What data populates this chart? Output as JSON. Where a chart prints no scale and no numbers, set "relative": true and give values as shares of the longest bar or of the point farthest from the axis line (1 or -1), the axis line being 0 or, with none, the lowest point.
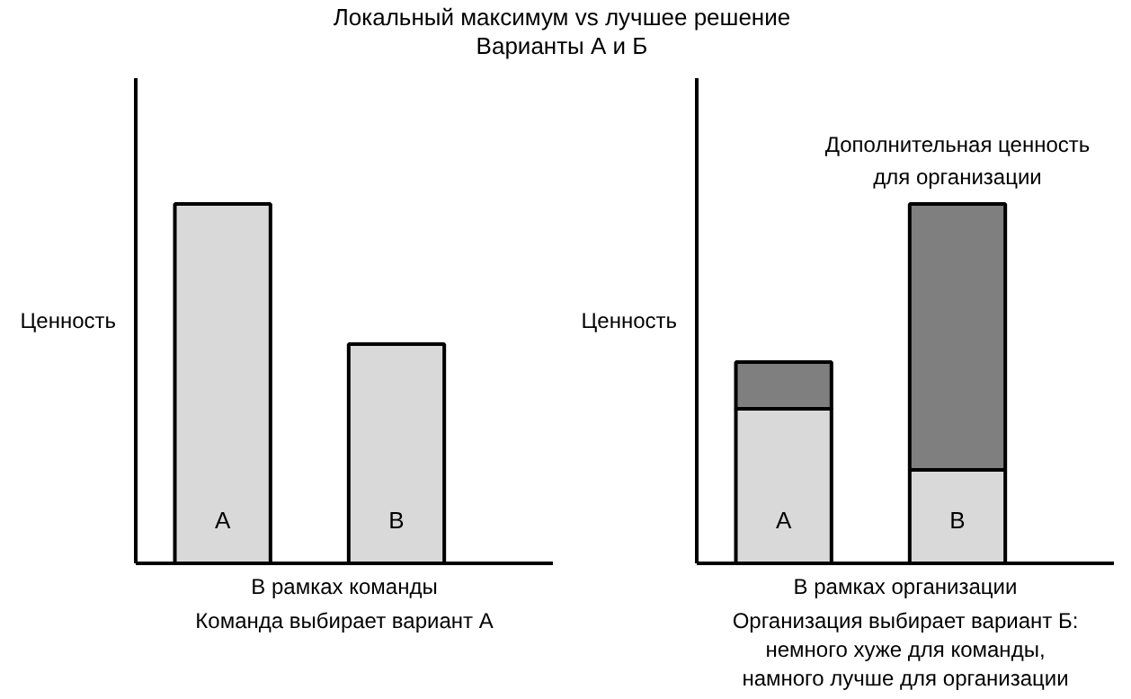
{
  "chart_data": [
    {
      "type": "bar",
      "title": "Локальный максимум vs лучшее решение",
      "subtitle": "Варианты А и Б",
      "relative": true,
      "categories": [
        "A",
        "B"
      ],
      "values": [
        1,
        0.61
      ],
      "color": "#d9d9d9",
      "ylabel": "Ценность",
      "xlabel": "В рамках команды",
      "annotations": [
        "Команда выбирает вариант А"
      ]
    },
    {
      "type": "bar",
      "relative": true,
      "stacked": true,
      "categories": [
        "A",
        "B"
      ],
      "series": [
        {
          "color": "#d9d9d9",
          "values": [
            0.43,
            0.26
          ]
        },
        {
          "color": "#7f7f7f",
          "values": [
            0.13,
            0.74
          ]
        }
      ],
      "ylabel": "Ценность",
      "xlabel": "В рамках организации",
      "annotations": [
        {
          "text": "Дополнительная ценность для организации",
          "x": "B",
          "y": 1
        },
        "Организация выбирает вариант Б: немного хуже для команды, намного лучше для организации"
      ]
    }
  ]
}
